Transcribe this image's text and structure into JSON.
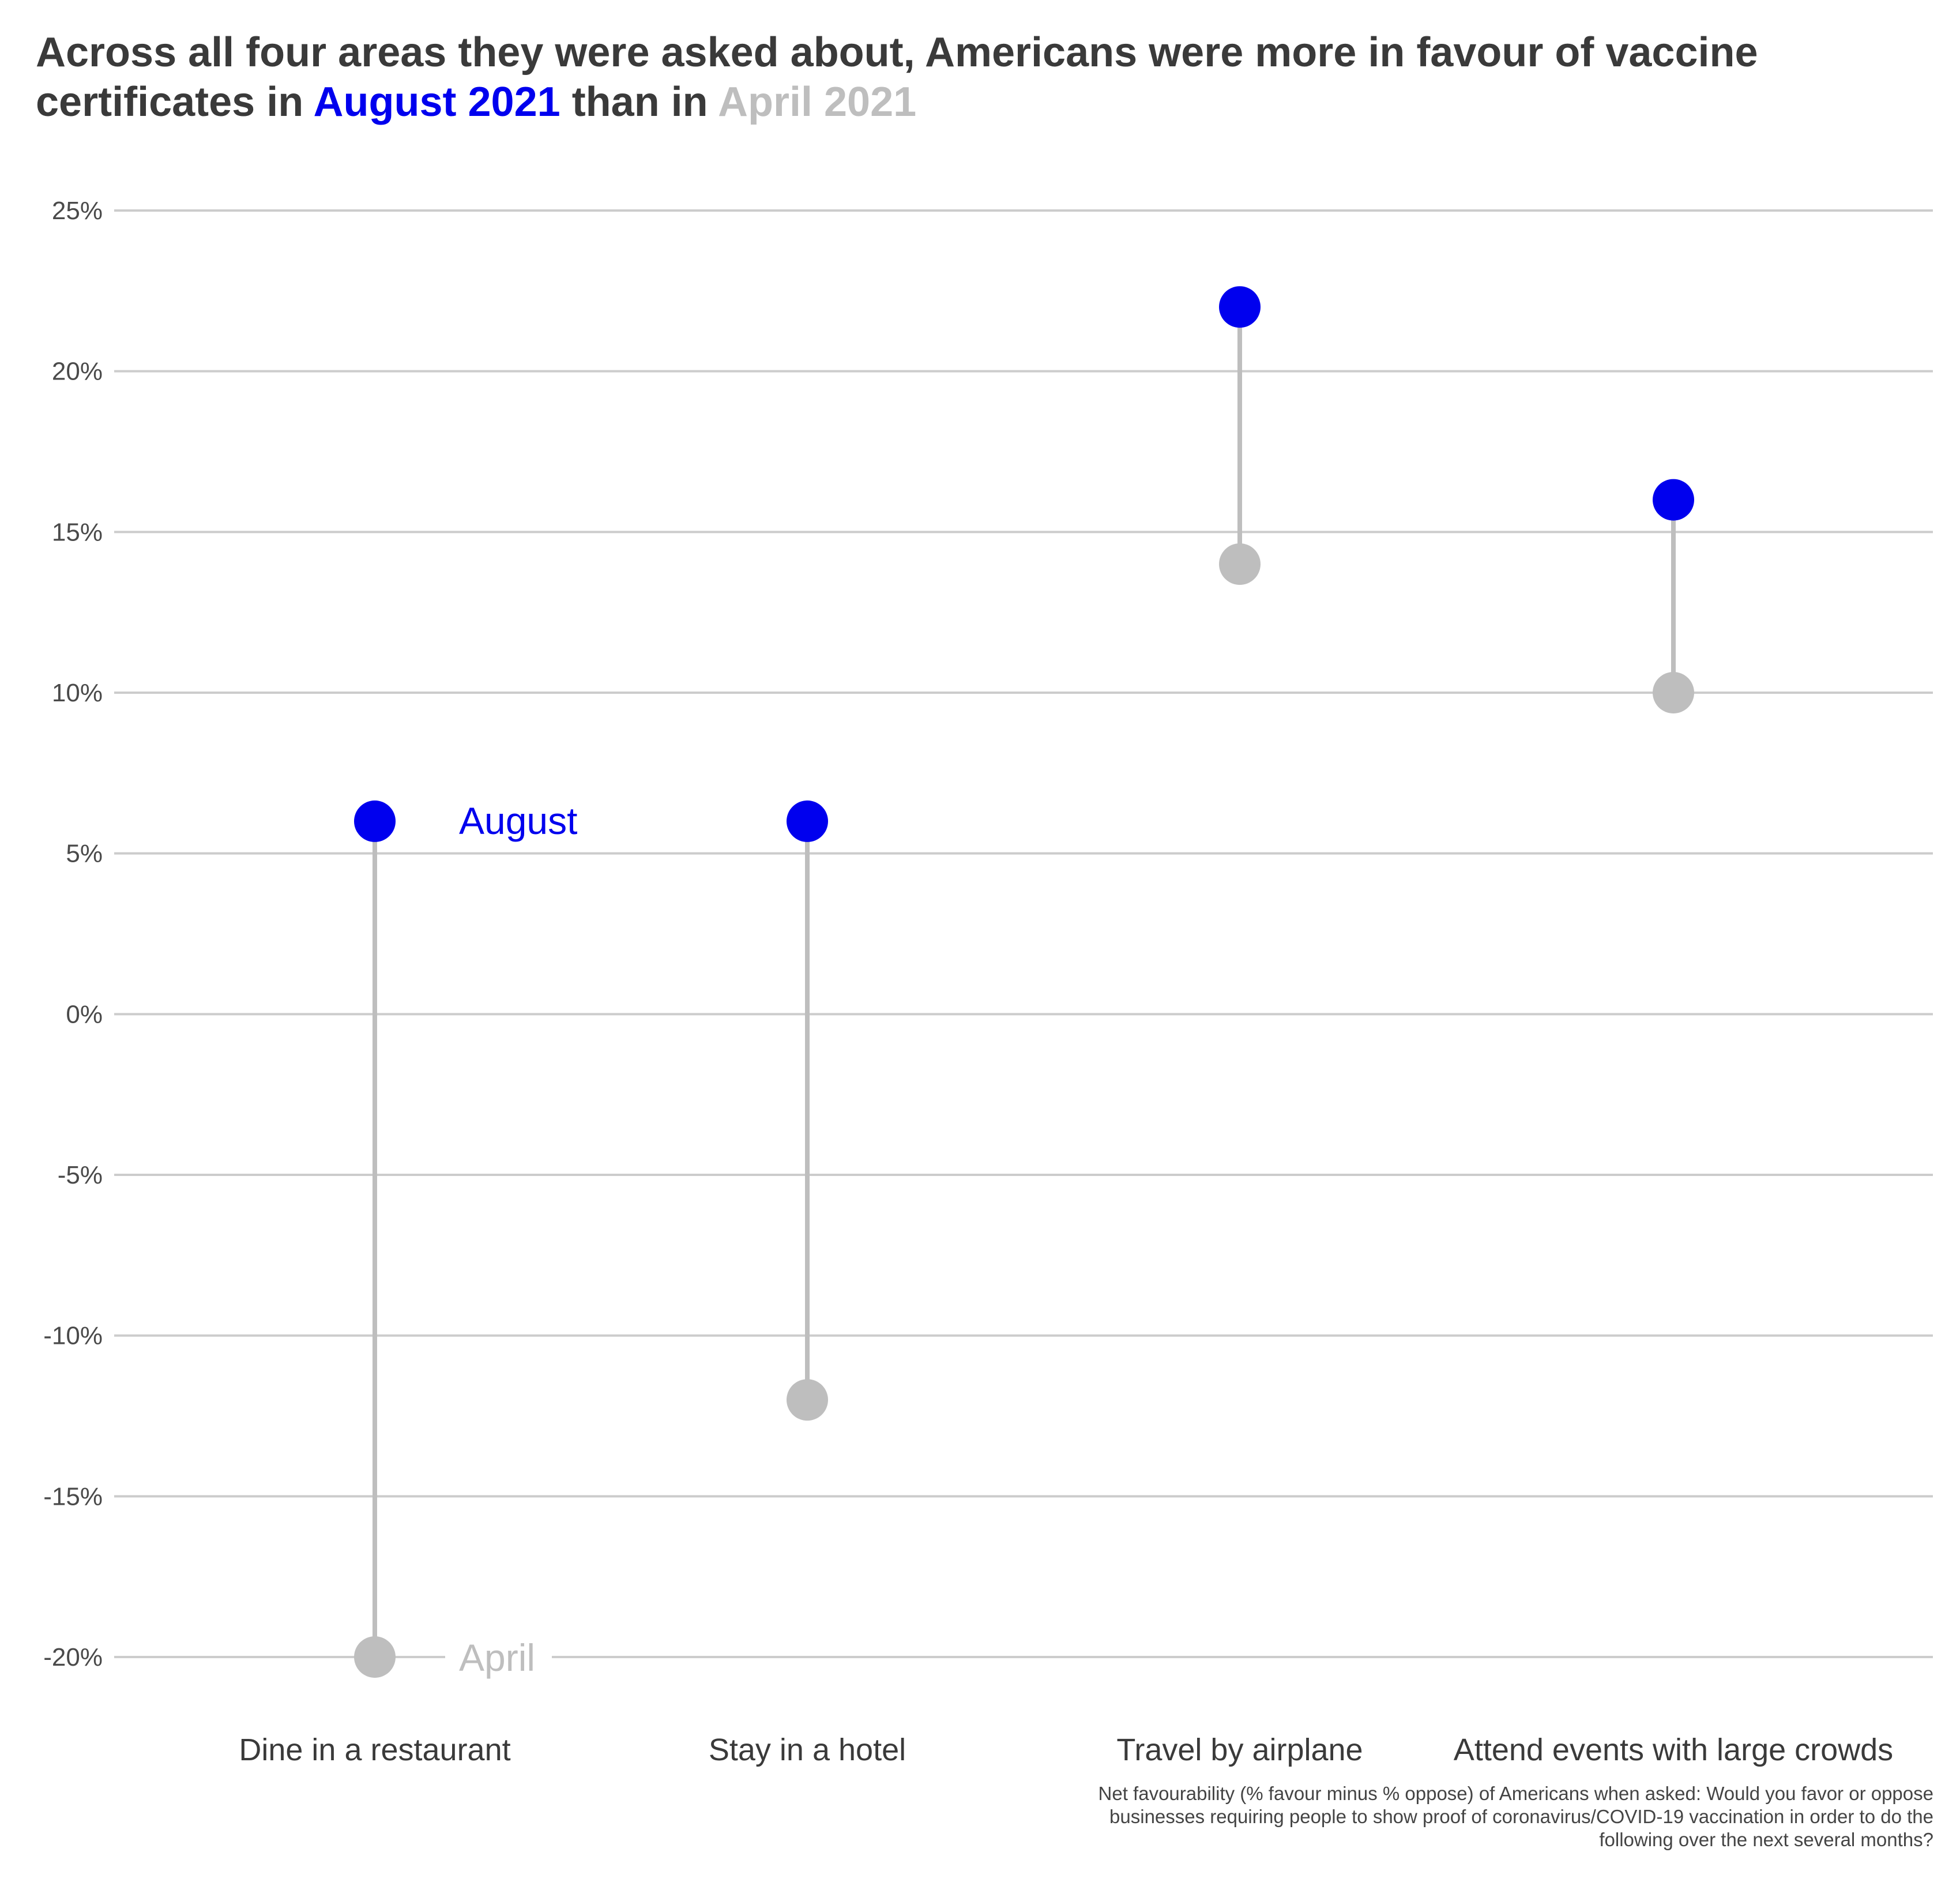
{
  "title": {
    "part1": "Across all four areas they were asked about, Americans were more in favour of vaccine",
    "part2": "certificates in ",
    "august_label": "August 2021",
    "part3": " than in ",
    "april_label": "April 2021"
  },
  "caption": {
    "line1": "Net favourability (% favour minus % oppose) of Americans when asked: Would you favor or oppose",
    "line2": "businesses requiring people to show proof of coronavirus/COVID-19 vaccination in order to do the",
    "line3": "following over the next several months?"
  },
  "colors": {
    "august": "#0000ee",
    "april": "#bebebe",
    "segment": "#bebebe",
    "grid": "#cccccc",
    "text": "#3a3a3a"
  },
  "chart_data": {
    "type": "dumbbell",
    "categories": [
      "Dine in a restaurant",
      "Stay in a hotel",
      "Travel by airplane",
      "Attend events with large crowds"
    ],
    "series": [
      {
        "name": "August",
        "values": [
          6,
          6,
          22,
          16
        ]
      },
      {
        "name": "April",
        "values": [
          -20,
          -12,
          14,
          10
        ]
      }
    ],
    "ylim": [
      -20,
      25
    ],
    "yticks": [
      25,
      20,
      15,
      10,
      5,
      0,
      -5,
      -10,
      -15,
      -20
    ],
    "ytick_labels": [
      "25%",
      "20%",
      "15%",
      "10%",
      "5%",
      "0%",
      "-5%",
      "-10%",
      "-15%",
      "-20%"
    ],
    "grid": true,
    "annotations": {
      "august": "August",
      "april": "April"
    }
  }
}
